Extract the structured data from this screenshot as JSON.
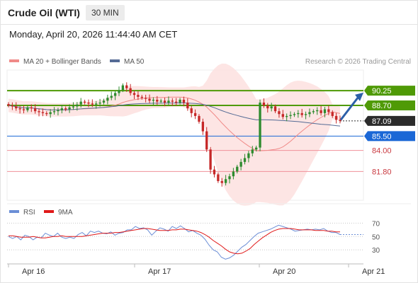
{
  "header": {
    "title": "Crude Oil (WTI)",
    "timeframe": "30 MIN"
  },
  "datetime": "Monday, April 20, 2026 11:44:40 AM CET",
  "legend": {
    "ma20_bb": "MA 20 + Bollinger Bands",
    "ma50": "MA 50",
    "credit": "Research © 2026 Trading Central"
  },
  "rsi_legend": {
    "rsi": "RSI",
    "ma9": "9MA"
  },
  "colors": {
    "candle_up": "#2e8b2e",
    "candle_down": "#c62828",
    "bb_fill": "#fde0df",
    "ma20": "#f08a88",
    "ma50": "#556b95",
    "resistance": "#4f9a06",
    "pivot": "#1a67d6",
    "support": "#f0909a",
    "current": "#2b2b2b",
    "rsi": "#6b8ed6",
    "rsi_ma": "#e01919",
    "arrow": "#2c5fa8"
  },
  "chart_data": [
    {
      "type": "candlestick",
      "x_ticks": [
        "Apr 16",
        "Apr 17",
        "Apr 20",
        "Apr 21"
      ],
      "ylim": [
        78.8,
        92.4
      ],
      "levels": [
        {
          "value": 90.25,
          "label": "90.25",
          "kind": "resistance"
        },
        {
          "value": 88.7,
          "label": "88.70",
          "kind": "resistance"
        },
        {
          "value": 87.09,
          "label": "87.09",
          "kind": "current"
        },
        {
          "value": 85.5,
          "label": "85.50",
          "kind": "pivot"
        },
        {
          "value": 84.0,
          "label": "84.00",
          "kind": "support"
        },
        {
          "value": 81.8,
          "label": "81.80",
          "kind": "support"
        }
      ],
      "series": [
        {
          "name": "MA 20 + Bollinger Bands",
          "kind": "ma20_bb"
        },
        {
          "name": "MA 50",
          "kind": "ma50"
        }
      ],
      "outlook": "up",
      "close": [
        88.7,
        88.6,
        88.4,
        88.3,
        88.2,
        88.5,
        88.4,
        88.1,
        88.0,
        87.9,
        87.8,
        88.0,
        88.1,
        88.2,
        88.4,
        88.3,
        88.5,
        88.6,
        88.8,
        89.1,
        89.0,
        88.9,
        88.8,
        88.9,
        89.0,
        89.2,
        89.5,
        89.7,
        90.0,
        90.3,
        90.8,
        90.5,
        90.0,
        89.8,
        89.6,
        89.5,
        89.4,
        89.2,
        89.3,
        89.1,
        89.2,
        89.0,
        89.2,
        89.1,
        89.0,
        89.3,
        89.0,
        88.4,
        87.9,
        87.6,
        87.0,
        86.0,
        84.1,
        82.0,
        81.5,
        80.8,
        80.6,
        81.0,
        81.3,
        81.8,
        82.3,
        82.8,
        83.2,
        83.7,
        84.1,
        84.3,
        89.0,
        88.7,
        88.4,
        88.6,
        88.1,
        87.8,
        87.5,
        87.6,
        87.7,
        87.8,
        87.9,
        87.7,
        87.8,
        88.0,
        88.1,
        88.2,
        87.9,
        88.3,
        88.0,
        87.6,
        87.2,
        87.09
      ]
    },
    {
      "type": "line",
      "title": "RSI",
      "ylim": [
        10,
        80
      ],
      "y_ticks": [
        70,
        50,
        30
      ],
      "series": [
        {
          "name": "RSI",
          "values": [
            50,
            47,
            50,
            45,
            52,
            50,
            45,
            49,
            48,
            55,
            52,
            50,
            55,
            49,
            47,
            49,
            47,
            53,
            56,
            51,
            58,
            56,
            58,
            55,
            54,
            57,
            52,
            55,
            56,
            60,
            60,
            65,
            62,
            63,
            60,
            52,
            58,
            63,
            61,
            58,
            65,
            62,
            66,
            62,
            57,
            59,
            55,
            52,
            46,
            37,
            30,
            27,
            19,
            16,
            18,
            22,
            28,
            34,
            38,
            44,
            50,
            55,
            57,
            59,
            61,
            64,
            67,
            65,
            63,
            61,
            58,
            59,
            60,
            61,
            60,
            61,
            60,
            62,
            58,
            56,
            56,
            53
          ]
        },
        {
          "name": "9MA",
          "values": [
            51,
            51,
            50,
            49,
            49,
            49,
            50,
            49,
            48,
            48,
            49,
            50,
            50,
            51,
            50,
            50,
            50,
            50,
            50,
            51,
            52,
            53,
            54,
            55,
            55,
            55,
            56,
            56,
            57,
            58,
            59,
            60,
            61,
            62,
            62,
            61,
            60,
            59,
            59,
            59,
            60,
            60,
            61,
            61,
            60,
            59,
            58,
            56,
            53,
            49,
            44,
            40,
            36,
            31,
            27,
            25,
            24,
            25,
            28,
            32,
            38,
            43,
            48,
            52,
            56,
            59,
            61,
            62,
            62,
            62,
            61,
            60,
            60,
            60,
            60,
            59,
            59,
            59,
            58,
            58,
            57,
            57
          ]
        }
      ]
    }
  ]
}
